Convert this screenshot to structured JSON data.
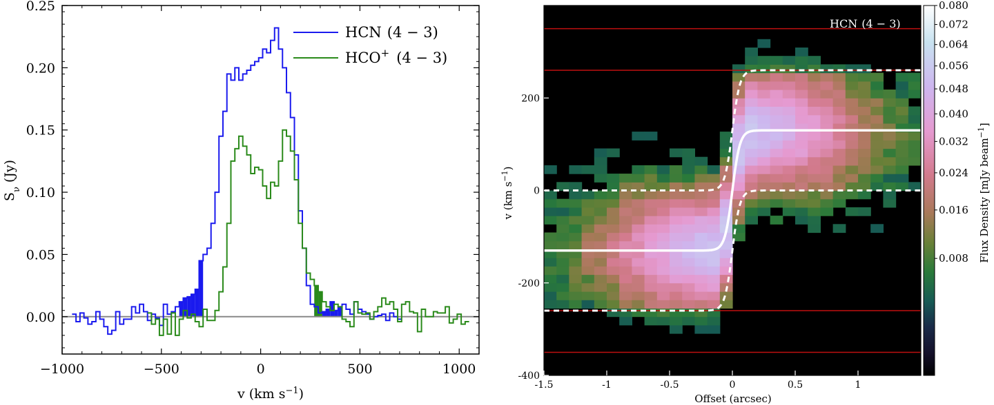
{
  "chart_data": [
    {
      "type": "line",
      "subtype": "step",
      "xlabel": "v (km s",
      "xlabel_sup": "−1",
      "xlabel_close": ")",
      "ylabel": "S",
      "ylabel_sub": "ν",
      "ylabel_rest": " (Jy)",
      "xlim": [
        -1000,
        1100
      ],
      "ylim": [
        -0.03,
        0.25
      ],
      "xticks": [
        -1000,
        -500,
        0,
        500,
        1000
      ],
      "xtick_labels": [
        "−1000",
        "−500",
        "0",
        "500",
        "1000"
      ],
      "yticks": [
        0.0,
        0.05,
        0.1,
        0.15,
        0.2,
        0.25
      ],
      "ytick_labels": [
        "0.00",
        "0.05",
        "0.10",
        "0.15",
        "0.20",
        "0.25"
      ],
      "zero_line": 0,
      "legend_position": "top-right",
      "legend": [
        {
          "label": "HCN",
          "label_math": "(4 − 3)",
          "color": "#1a1aee"
        },
        {
          "label": "HCO",
          "label_sup": "+",
          "label_math": "(4 − 3)",
          "color": "#2a8a1a"
        }
      ],
      "series": [
        {
          "name": "HCN (4−3)",
          "color": "#1a1aee",
          "x": [
            -940,
            -920,
            -900,
            -880,
            -860,
            -840,
            -820,
            -800,
            -780,
            -760,
            -740,
            -720,
            -700,
            -680,
            -660,
            -640,
            -620,
            -600,
            -580,
            -560,
            -540,
            -520,
            -500,
            -480,
            -460,
            -440,
            -420,
            -400,
            -380,
            -360,
            -340,
            -320,
            -300,
            -280,
            -260,
            -240,
            -220,
            -200,
            -180,
            -160,
            -140,
            -120,
            -100,
            -80,
            -60,
            -40,
            -20,
            0,
            20,
            40,
            60,
            80,
            100,
            120,
            140,
            160,
            180,
            200,
            220,
            240,
            260,
            280,
            300,
            320,
            340,
            360,
            380,
            400,
            420,
            440,
            460,
            480,
            500,
            520,
            540,
            560,
            580,
            600,
            620,
            640,
            660,
            680,
            700
          ],
          "values": [
            0.002,
            -0.004,
            0.003,
            -0.001,
            -0.006,
            -0.004,
            0.004,
            -0.002,
            -0.008,
            -0.014,
            -0.011,
            0.004,
            -0.006,
            -0.002,
            -0.002,
            0.008,
            0.003,
            0.01,
            0.004,
            -0.003,
            0.002,
            -0.001,
            -0.007,
            0.01,
            0.002,
            0.004,
            0.008,
            0.012,
            0.015,
            0.016,
            0.018,
            0.022,
            0.045,
            0.05,
            0.055,
            0.075,
            0.1,
            0.145,
            0.165,
            0.195,
            0.19,
            0.2,
            0.19,
            0.195,
            0.198,
            0.202,
            0.205,
            0.208,
            0.215,
            0.212,
            0.222,
            0.232,
            0.215,
            0.2,
            0.18,
            0.16,
            0.13,
            0.085,
            0.055,
            0.025,
            0.01,
            0.008,
            0.003,
            0.004,
            0.006,
            0.012,
            0.005,
            0.008,
            0.01,
            0.006,
            0.002,
            0.012,
            0.006,
            0.004,
            0.002,
            -0.002,
            0.0,
            0.001,
            0.002,
            -0.003,
            0.003,
            0.0,
            -0.002
          ]
        },
        {
          "name": "HCO+ (4−3)",
          "color": "#2a8a1a",
          "x": [
            -560,
            -540,
            -520,
            -500,
            -480,
            -460,
            -440,
            -420,
            -400,
            -380,
            -360,
            -340,
            -320,
            -300,
            -280,
            -260,
            -240,
            -220,
            -200,
            -180,
            -160,
            -140,
            -120,
            -100,
            -80,
            -60,
            -40,
            -20,
            0,
            20,
            40,
            60,
            80,
            100,
            120,
            140,
            160,
            180,
            200,
            220,
            240,
            260,
            280,
            300,
            320,
            340,
            360,
            380,
            400,
            420,
            440,
            460,
            480,
            500,
            520,
            540,
            560,
            580,
            600,
            620,
            640,
            660,
            680,
            700,
            720,
            740,
            760,
            780,
            800,
            820,
            840,
            860,
            880,
            900,
            920,
            940,
            960,
            980,
            1000,
            1020,
            1040
          ],
          "values": [
            0.003,
            -0.006,
            -0.002,
            -0.015,
            -0.002,
            -0.014,
            0.003,
            -0.015,
            -0.002,
            0.005,
            -0.001,
            0.002,
            -0.004,
            -0.008,
            0.006,
            -0.003,
            -0.003,
            0.005,
            0.02,
            0.04,
            0.075,
            0.125,
            0.135,
            0.145,
            0.137,
            0.13,
            0.115,
            0.12,
            0.118,
            0.105,
            0.095,
            0.108,
            0.105,
            0.125,
            0.15,
            0.145,
            0.133,
            0.11,
            0.075,
            0.055,
            0.035,
            0.03,
            0.025,
            0.02,
            0.012,
            0.008,
            0.005,
            0.01,
            0.008,
            -0.002,
            -0.004,
            -0.008,
            0.012,
            0.003,
            0.002,
            0.003,
            -0.002,
            0.004,
            0.008,
            0.015,
            0.01,
            0.012,
            0.006,
            -0.004,
            0.01,
            0.012,
            0.004,
            0.003,
            -0.012,
            0.006,
            0.0,
            0.0,
            0.004,
            0.003,
            0.003,
            0.008,
            -0.005,
            -0.002,
            0.002,
            -0.006,
            -0.004
          ]
        }
      ],
      "fill_regions": [
        {
          "color": "#1a1aee",
          "x_start": -400,
          "x_end": -300
        },
        {
          "color": "#1a1aee",
          "x_start": 280,
          "x_end": 400
        }
      ]
    },
    {
      "type": "heatmap",
      "title": "HCN",
      "title_math": "(4 − 3)",
      "xlabel": "Offset (arcsec)",
      "ylabel": "v (km s",
      "ylabel_sup": "−1",
      "ylabel_close": ")",
      "xlim": [
        -1.5,
        1.5
      ],
      "ylim": [
        -400,
        400
      ],
      "xticks": [
        -1.5,
        -1,
        -0.5,
        0,
        0.5,
        1
      ],
      "xtick_labels": [
        "-1.5",
        "-1",
        "-0.5",
        "0",
        "0.5",
        "1"
      ],
      "yticks": [
        -400,
        -200,
        0,
        200
      ],
      "ytick_labels": [
        "-400",
        "-200",
        "0",
        "200"
      ],
      "colormap": "cubehelix",
      "colorbar": {
        "label": "Flux Density [mJy beam",
        "label_sup": "−1",
        "label_close": "]",
        "scale": "sqrt",
        "range": [
          0,
          0.08
        ],
        "ticks": [
          0.008,
          0.016,
          0.024,
          0.032,
          0.04,
          0.048,
          0.056,
          0.064,
          0.072,
          0.08
        ],
        "tick_labels": [
          "0.008",
          "0.016",
          "0.024",
          "0.032",
          "0.040",
          "0.048",
          "0.056",
          "0.064",
          "0.072",
          "0.080"
        ]
      },
      "red_lines_velocity": [
        350,
        260,
        -260,
        -350
      ],
      "rotation_curve_peak": 130,
      "rotation_curve_envelope": 130,
      "envelope_offset": 130
    }
  ]
}
